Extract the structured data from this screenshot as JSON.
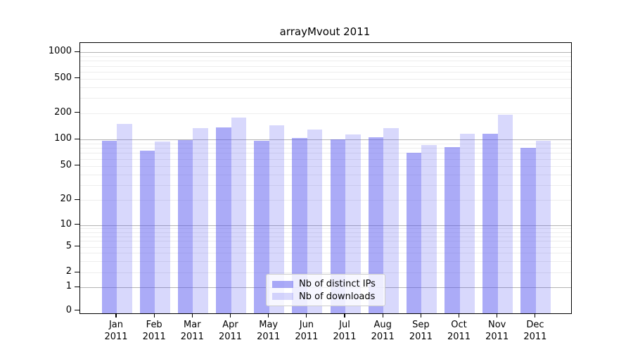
{
  "chart_data": {
    "type": "bar",
    "title": "arrayMvout 2011",
    "year_label": "2011",
    "categories": [
      "Jan",
      "Feb",
      "Mar",
      "Apr",
      "May",
      "Jun",
      "Jul",
      "Aug",
      "Sep",
      "Oct",
      "Nov",
      "Dec"
    ],
    "series": [
      {
        "name": "Nb of distinct IPs",
        "color": "rgba(87,87,240,0.5)",
        "values": [
          96,
          75,
          98,
          137,
          96,
          104,
          100,
          105,
          71,
          82,
          117,
          81
        ]
      },
      {
        "name": "Nb of downloads",
        "color": "rgba(87,87,240,0.23)",
        "values": [
          150,
          95,
          135,
          176,
          146,
          129,
          114,
          134,
          87,
          116,
          190,
          96
        ]
      }
    ],
    "yticks": [
      1000,
      500,
      200,
      100,
      50,
      20,
      10,
      5,
      2,
      1,
      0
    ],
    "scale": "symlog",
    "ylim": [
      0,
      1300
    ],
    "grid": "both",
    "legend_position": "lower center"
  },
  "colors": {
    "grid_major": "#b3b3b3",
    "grid_minor": "#ededed",
    "axis": "#000000",
    "background": "#ffffff"
  }
}
